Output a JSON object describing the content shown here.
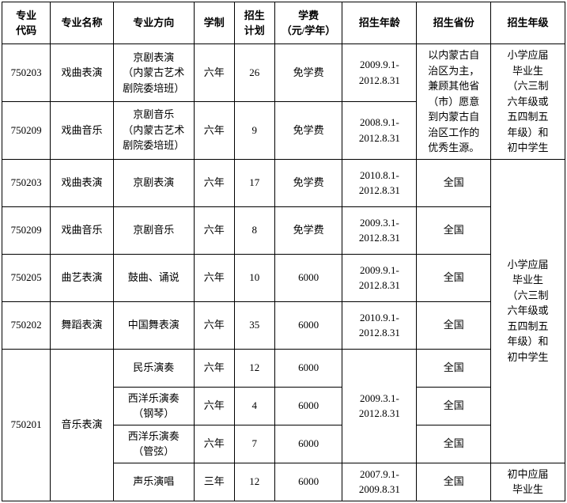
{
  "headers": [
    "专业\n代码",
    "专业名称",
    "专业方向",
    "学制",
    "招生\n计划",
    "学费\n（元/学年）",
    "招生年龄",
    "招生省份",
    "招生年级"
  ],
  "widths": [
    60,
    78,
    100,
    50,
    50,
    84,
    92,
    92,
    92
  ],
  "rows": [
    {
      "code": "750203",
      "name": "戏曲表演",
      "dir": "京剧表演\n（内蒙古艺术\n剧院委培班）",
      "dur": "六年",
      "plan": "26",
      "fee": "免学费",
      "age": "2009.9.1-\n2012.8.31"
    },
    {
      "code": "750209",
      "name": "戏曲音乐",
      "dir": "京剧音乐\n（内蒙古艺术\n剧院委培班）",
      "dur": "六年",
      "plan": "9",
      "fee": "免学费",
      "age": "2008.9.1-\n2012.8.31"
    },
    {
      "code": "750203",
      "name": "戏曲表演",
      "dir": "京剧表演",
      "dur": "六年",
      "plan": "17",
      "fee": "免学费",
      "age": "2010.8.1-\n2012.8.31",
      "prov": "全国"
    },
    {
      "code": "750209",
      "name": "戏曲音乐",
      "dir": "京剧音乐",
      "dur": "六年",
      "plan": "8",
      "fee": "免学费",
      "age": "2009.3.1-\n2012.8.31",
      "prov": "全国"
    },
    {
      "code": "750205",
      "name": "曲艺表演",
      "dir": "鼓曲、诵说",
      "dur": "六年",
      "plan": "10",
      "fee": "6000",
      "age": "2009.9.1-\n2012.8.31",
      "prov": "全国"
    },
    {
      "code": "750202",
      "name": "舞蹈表演",
      "dir": "中国舞表演",
      "dur": "六年",
      "plan": "35",
      "fee": "6000",
      "age": "2010.9.1-\n2012.8.31",
      "prov": "全国"
    },
    {
      "dir": "民乐演奏",
      "dur": "六年",
      "plan": "12",
      "fee": "6000",
      "prov": "全国"
    },
    {
      "dir": "西洋乐演奏\n（钢琴）",
      "dur": "六年",
      "plan": "4",
      "fee": "6000",
      "prov": "全国"
    },
    {
      "dir": "西洋乐演奏\n（管弦）",
      "dur": "六年",
      "plan": "7",
      "fee": "6000",
      "prov": "全国"
    },
    {
      "dir": "声乐演唱",
      "dur": "三年",
      "plan": "12",
      "fee": "6000",
      "age": "2007.9.1-\n2009.8.31",
      "prov": "全国"
    }
  ],
  "merged": {
    "prov12": "以内蒙古自\n治区为主，\n兼顾其他省\n（市）愿意\n到内蒙古自\n治区工作的\n优秀生源。",
    "grade12": "小学应届\n毕业生\n（六三制\n六年级或\n五四制五\n年级）和\n初中学生",
    "grade36": "小学应届\n毕业生\n（六三制\n六年级或\n五四制五\n年级）和\n初中学生",
    "code710": "750201",
    "name710": "音乐表演",
    "age79": "2009.3.1-\n2012.8.31",
    "grade10": "初中应届\n毕业生"
  }
}
